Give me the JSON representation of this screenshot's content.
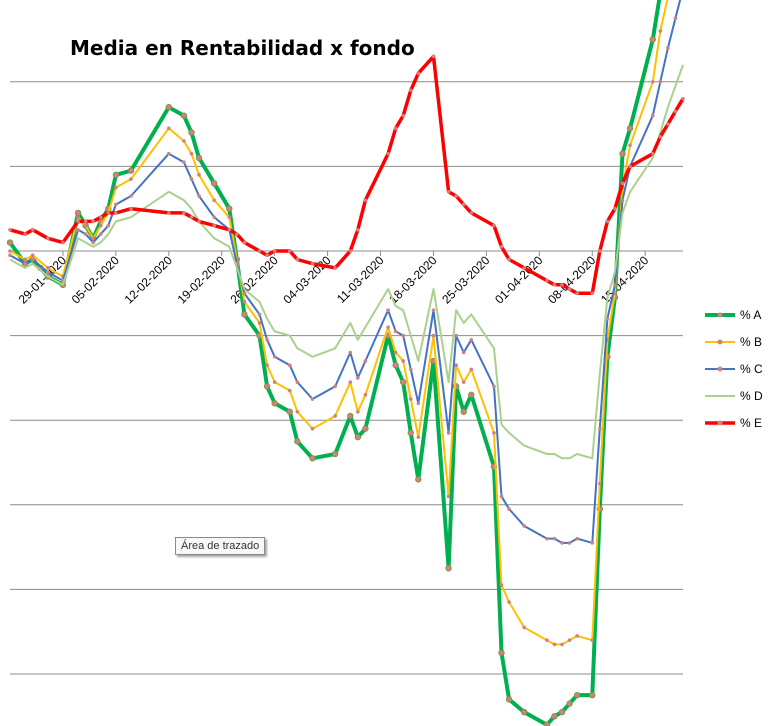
{
  "chart_data": {
    "type": "line",
    "title": "Media en Rentabilidad x fondo",
    "x_tick_labels": [
      "29-01-2020",
      "05-02-2020",
      "12-02-2020",
      "19-02-2020",
      "26-02-2020",
      "04-03-2020",
      "11-03-2020",
      "18-03-2020",
      "25-03-2020",
      "01-04-2020",
      "08-04-2020",
      "15-04-2020"
    ],
    "x_day_range": [
      -7,
      82
    ],
    "y_visible_labels": false,
    "gridlines": true,
    "legend_position": "right",
    "series": [
      {
        "name": "% A",
        "color": "#00b050",
        "x": [
          -7,
          -5,
          -4,
          -3,
          -2,
          0,
          2,
          3,
          4,
          5,
          6,
          7,
          9,
          14,
          16,
          17,
          18,
          20,
          22,
          23,
          24,
          26,
          27,
          28,
          30,
          31,
          33,
          36,
          38,
          39,
          40,
          43,
          44,
          45,
          46,
          47,
          49,
          51,
          52,
          53,
          54,
          57,
          58,
          59,
          61,
          64,
          65,
          66,
          67,
          68,
          70,
          71,
          72,
          73,
          74,
          75,
          78,
          79,
          80,
          81,
          82
        ],
        "y": [
          0.2,
          -0.3,
          -0.2,
          -0.4,
          -0.6,
          -0.8,
          0.9,
          0.6,
          0.3,
          0.7,
          1.0,
          1.8,
          1.9,
          3.4,
          3.2,
          2.8,
          2.2,
          1.6,
          1.0,
          -0.2,
          -1.5,
          -2.0,
          -3.2,
          -3.6,
          -3.8,
          -4.5,
          -4.9,
          -4.8,
          -3.9,
          -4.4,
          -4.2,
          -2.0,
          -2.7,
          -3.1,
          -4.3,
          -5.4,
          -2.6,
          -7.5,
          -3.2,
          -3.8,
          -3.4,
          -5.1,
          -9.5,
          -10.6,
          -10.9,
          -11.2,
          -11.0,
          -10.9,
          -10.7,
          -10.5,
          -10.5,
          -6.1,
          -2.5,
          -1.1,
          2.3,
          2.9,
          5.0,
          6.1,
          7.3,
          8.1,
          8.8
        ]
      },
      {
        "name": "% B",
        "color": "#ffc000",
        "x": [
          -7,
          -5,
          -4,
          -2,
          0,
          2,
          3,
          4,
          5,
          6,
          7,
          9,
          14,
          16,
          17,
          18,
          20,
          22,
          23,
          24,
          26,
          27,
          28,
          30,
          31,
          33,
          36,
          38,
          39,
          40,
          43,
          44,
          45,
          46,
          47,
          49,
          51,
          52,
          53,
          54,
          57,
          58,
          59,
          61,
          64,
          65,
          66,
          67,
          68,
          70,
          71,
          72,
          73,
          74,
          75,
          78,
          79,
          80,
          81,
          82
        ],
        "y": [
          0.0,
          -0.2,
          -0.1,
          -0.4,
          -0.6,
          0.8,
          0.6,
          0.3,
          0.6,
          0.9,
          1.5,
          1.7,
          2.9,
          2.6,
          2.3,
          1.8,
          1.2,
          0.8,
          -0.2,
          -1.2,
          -1.7,
          -2.7,
          -3.1,
          -3.3,
          -3.8,
          -4.2,
          -3.9,
          -3.1,
          -3.8,
          -3.4,
          -1.8,
          -2.4,
          -2.6,
          -3.5,
          -4.4,
          -2.0,
          -5.8,
          -2.7,
          -3.1,
          -2.8,
          -4.3,
          -7.9,
          -8.3,
          -8.9,
          -9.2,
          -9.3,
          -9.3,
          -9.2,
          -9.1,
          -9.2,
          -5.5,
          -2.1,
          -1.0,
          1.5,
          2.5,
          4.0,
          5.2,
          6.0,
          7.0,
          7.8
        ]
      },
      {
        "name": "% C",
        "color": "#4472c4",
        "x": [
          -7,
          -5,
          -4,
          -2,
          0,
          2,
          3,
          4,
          5,
          6,
          7,
          9,
          14,
          16,
          17,
          18,
          20,
          22,
          23,
          24,
          26,
          27,
          28,
          30,
          31,
          33,
          36,
          38,
          39,
          40,
          43,
          44,
          45,
          46,
          47,
          49,
          51,
          52,
          53,
          54,
          57,
          58,
          59,
          61,
          64,
          65,
          66,
          67,
          68,
          70,
          71,
          72,
          73,
          74,
          75,
          78,
          79,
          80,
          81,
          82
        ],
        "y": [
          -0.1,
          -0.3,
          -0.2,
          -0.5,
          -0.7,
          0.5,
          0.4,
          0.2,
          0.4,
          0.6,
          1.1,
          1.3,
          2.3,
          2.1,
          1.7,
          1.3,
          0.8,
          0.5,
          -0.3,
          -1.0,
          -1.5,
          -2.1,
          -2.5,
          -2.7,
          -3.1,
          -3.5,
          -3.2,
          -2.4,
          -3.0,
          -2.6,
          -1.4,
          -1.9,
          -2.0,
          -2.8,
          -3.6,
          -1.4,
          -4.3,
          -2.0,
          -2.4,
          -2.1,
          -3.2,
          -5.8,
          -6.1,
          -6.5,
          -6.8,
          -6.8,
          -6.9,
          -6.9,
          -6.8,
          -6.9,
          -4.2,
          -1.6,
          -0.8,
          1.2,
          2.0,
          3.2,
          4.0,
          4.8,
          5.5,
          6.2
        ]
      },
      {
        "name": "% D",
        "color": "#a9d18e",
        "x": [
          -7,
          -5,
          -4,
          -2,
          0,
          2,
          3,
          4,
          5,
          6,
          7,
          9,
          14,
          16,
          17,
          18,
          20,
          22,
          23,
          24,
          26,
          27,
          28,
          30,
          31,
          33,
          36,
          38,
          39,
          40,
          43,
          44,
          45,
          46,
          47,
          49,
          51,
          52,
          53,
          54,
          57,
          58,
          59,
          61,
          64,
          65,
          66,
          67,
          68,
          70,
          71,
          72,
          73,
          74,
          75,
          78,
          79,
          80,
          81,
          82
        ],
        "y": [
          -0.2,
          -0.4,
          -0.3,
          -0.6,
          -0.8,
          0.3,
          0.2,
          0.1,
          0.2,
          0.4,
          0.7,
          0.8,
          1.4,
          1.2,
          1.0,
          0.7,
          0.3,
          0.1,
          -0.4,
          -0.9,
          -1.2,
          -1.6,
          -1.9,
          -2.0,
          -2.3,
          -2.5,
          -2.3,
          -1.7,
          -2.1,
          -1.8,
          -0.9,
          -1.3,
          -1.4,
          -2.0,
          -2.6,
          -0.9,
          -3.1,
          -1.4,
          -1.7,
          -1.5,
          -2.3,
          -4.1,
          -4.3,
          -4.6,
          -4.8,
          -4.8,
          -4.9,
          -4.9,
          -4.8,
          -4.9,
          -2.9,
          -1.1,
          -0.5,
          0.9,
          1.4,
          2.2,
          2.8,
          3.4,
          3.9,
          4.4
        ]
      },
      {
        "name": "% E",
        "color": "#ff0000",
        "x": [
          -7,
          -5,
          -4,
          -2,
          0,
          2,
          3,
          4,
          5,
          6,
          7,
          9,
          14,
          16,
          17,
          18,
          20,
          22,
          23,
          24,
          26,
          27,
          28,
          30,
          31,
          33,
          36,
          38,
          39,
          40,
          43,
          44,
          45,
          46,
          47,
          49,
          51,
          52,
          53,
          54,
          57,
          58,
          59,
          61,
          64,
          65,
          66,
          67,
          68,
          70,
          71,
          72,
          73,
          74,
          75,
          78,
          79,
          80,
          81,
          82
        ],
        "y": [
          0.5,
          0.4,
          0.5,
          0.3,
          0.2,
          0.7,
          0.7,
          0.7,
          0.8,
          0.9,
          0.9,
          1.0,
          0.9,
          0.9,
          0.8,
          0.7,
          0.6,
          0.5,
          0.4,
          0.2,
          0.0,
          -0.1,
          0.0,
          0.0,
          -0.2,
          -0.3,
          -0.4,
          0.0,
          0.5,
          1.2,
          2.3,
          2.9,
          3.2,
          3.8,
          4.2,
          4.6,
          1.4,
          1.3,
          1.1,
          0.9,
          0.6,
          0.1,
          -0.2,
          -0.4,
          -0.7,
          -0.8,
          -0.8,
          -0.9,
          -1.0,
          -1.0,
          0.0,
          0.7,
          1.0,
          1.6,
          2.0,
          2.3,
          2.7,
          3.0,
          3.3,
          3.6
        ]
      }
    ]
  },
  "tooltip": {
    "label": "Área de trazado"
  }
}
